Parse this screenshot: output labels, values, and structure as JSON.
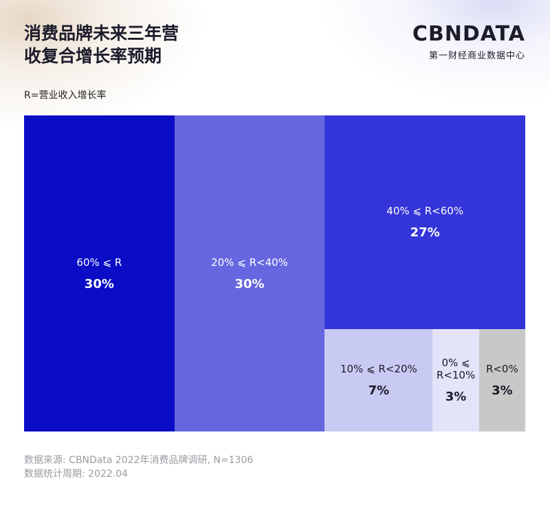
{
  "chart_data": {
    "type": "treemap",
    "title": "消费品牌未来三年营收复合增长率预期",
    "subtitle": "R=营业收入增长率",
    "brand": "CBNDATA",
    "brand_subtitle": "第一财经商业数据中心",
    "categories": [
      "60% ⩽ R",
      "20% ⩽ R<40%",
      "40% ⩽ R<60%",
      "10% ⩽ R<20%",
      "0% ⩽ R<10%",
      "R<0%"
    ],
    "values": [
      30,
      30,
      27,
      7,
      3,
      3
    ],
    "value_labels": [
      "30%",
      "30%",
      "27%",
      "7%",
      "3%",
      "3%"
    ],
    "colors": [
      "#0a0cc6",
      "#6667e0",
      "#3435d8",
      "#c9caf3",
      "#e3e3f9",
      "#c8c8c8"
    ],
    "label_colors": [
      "#ffffff",
      "#ffffff",
      "#ffffff",
      "#1a1a2a",
      "#1a1a2a",
      "#1a1a2a"
    ],
    "source": [
      "数据来源: CBNData 2022年消费品牌调研, N=1306",
      "数据统计周期: 2022.04"
    ]
  }
}
